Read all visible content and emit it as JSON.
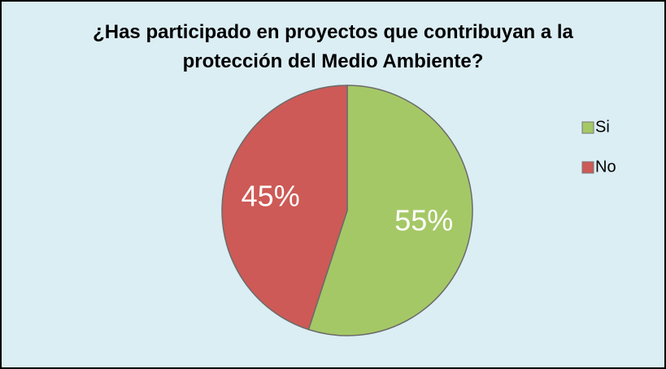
{
  "chart_data": {
    "type": "pie",
    "title": "¿Has participado en proyectos que contribuyan a la protección del Medio Ambiente?",
    "categories": [
      "Si",
      "No"
    ],
    "values": [
      55,
      45
    ],
    "value_labels": [
      "55%",
      "45%"
    ],
    "colors": [
      "#a5c866",
      "#cd5a56"
    ],
    "legend": "right"
  }
}
